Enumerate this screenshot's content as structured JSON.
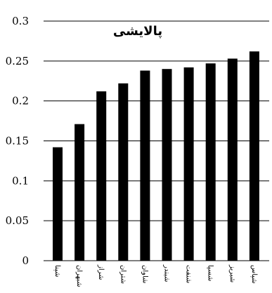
{
  "chart_data": {
    "type": "bar",
    "title": "پالایشی",
    "categories": [
      "شپنا",
      "شبهران",
      "شراز",
      "شتران",
      "شاوان",
      "شبندر",
      "شنفت",
      "شسپا",
      "شبریز",
      "شپاس"
    ],
    "values": [
      0.142,
      0.171,
      0.212,
      0.222,
      0.238,
      0.24,
      0.242,
      0.247,
      0.253,
      0.262
    ],
    "y_ticks": [
      "0",
      "0.05",
      "0.1",
      "0.15",
      "0.2",
      "0.25",
      "0.3"
    ],
    "ylim": [
      0,
      0.3
    ],
    "xlabel": "",
    "ylabel": "",
    "grid": "horizontal",
    "legend": "none",
    "bar_color": "#000000",
    "grid_color": "#000000"
  }
}
